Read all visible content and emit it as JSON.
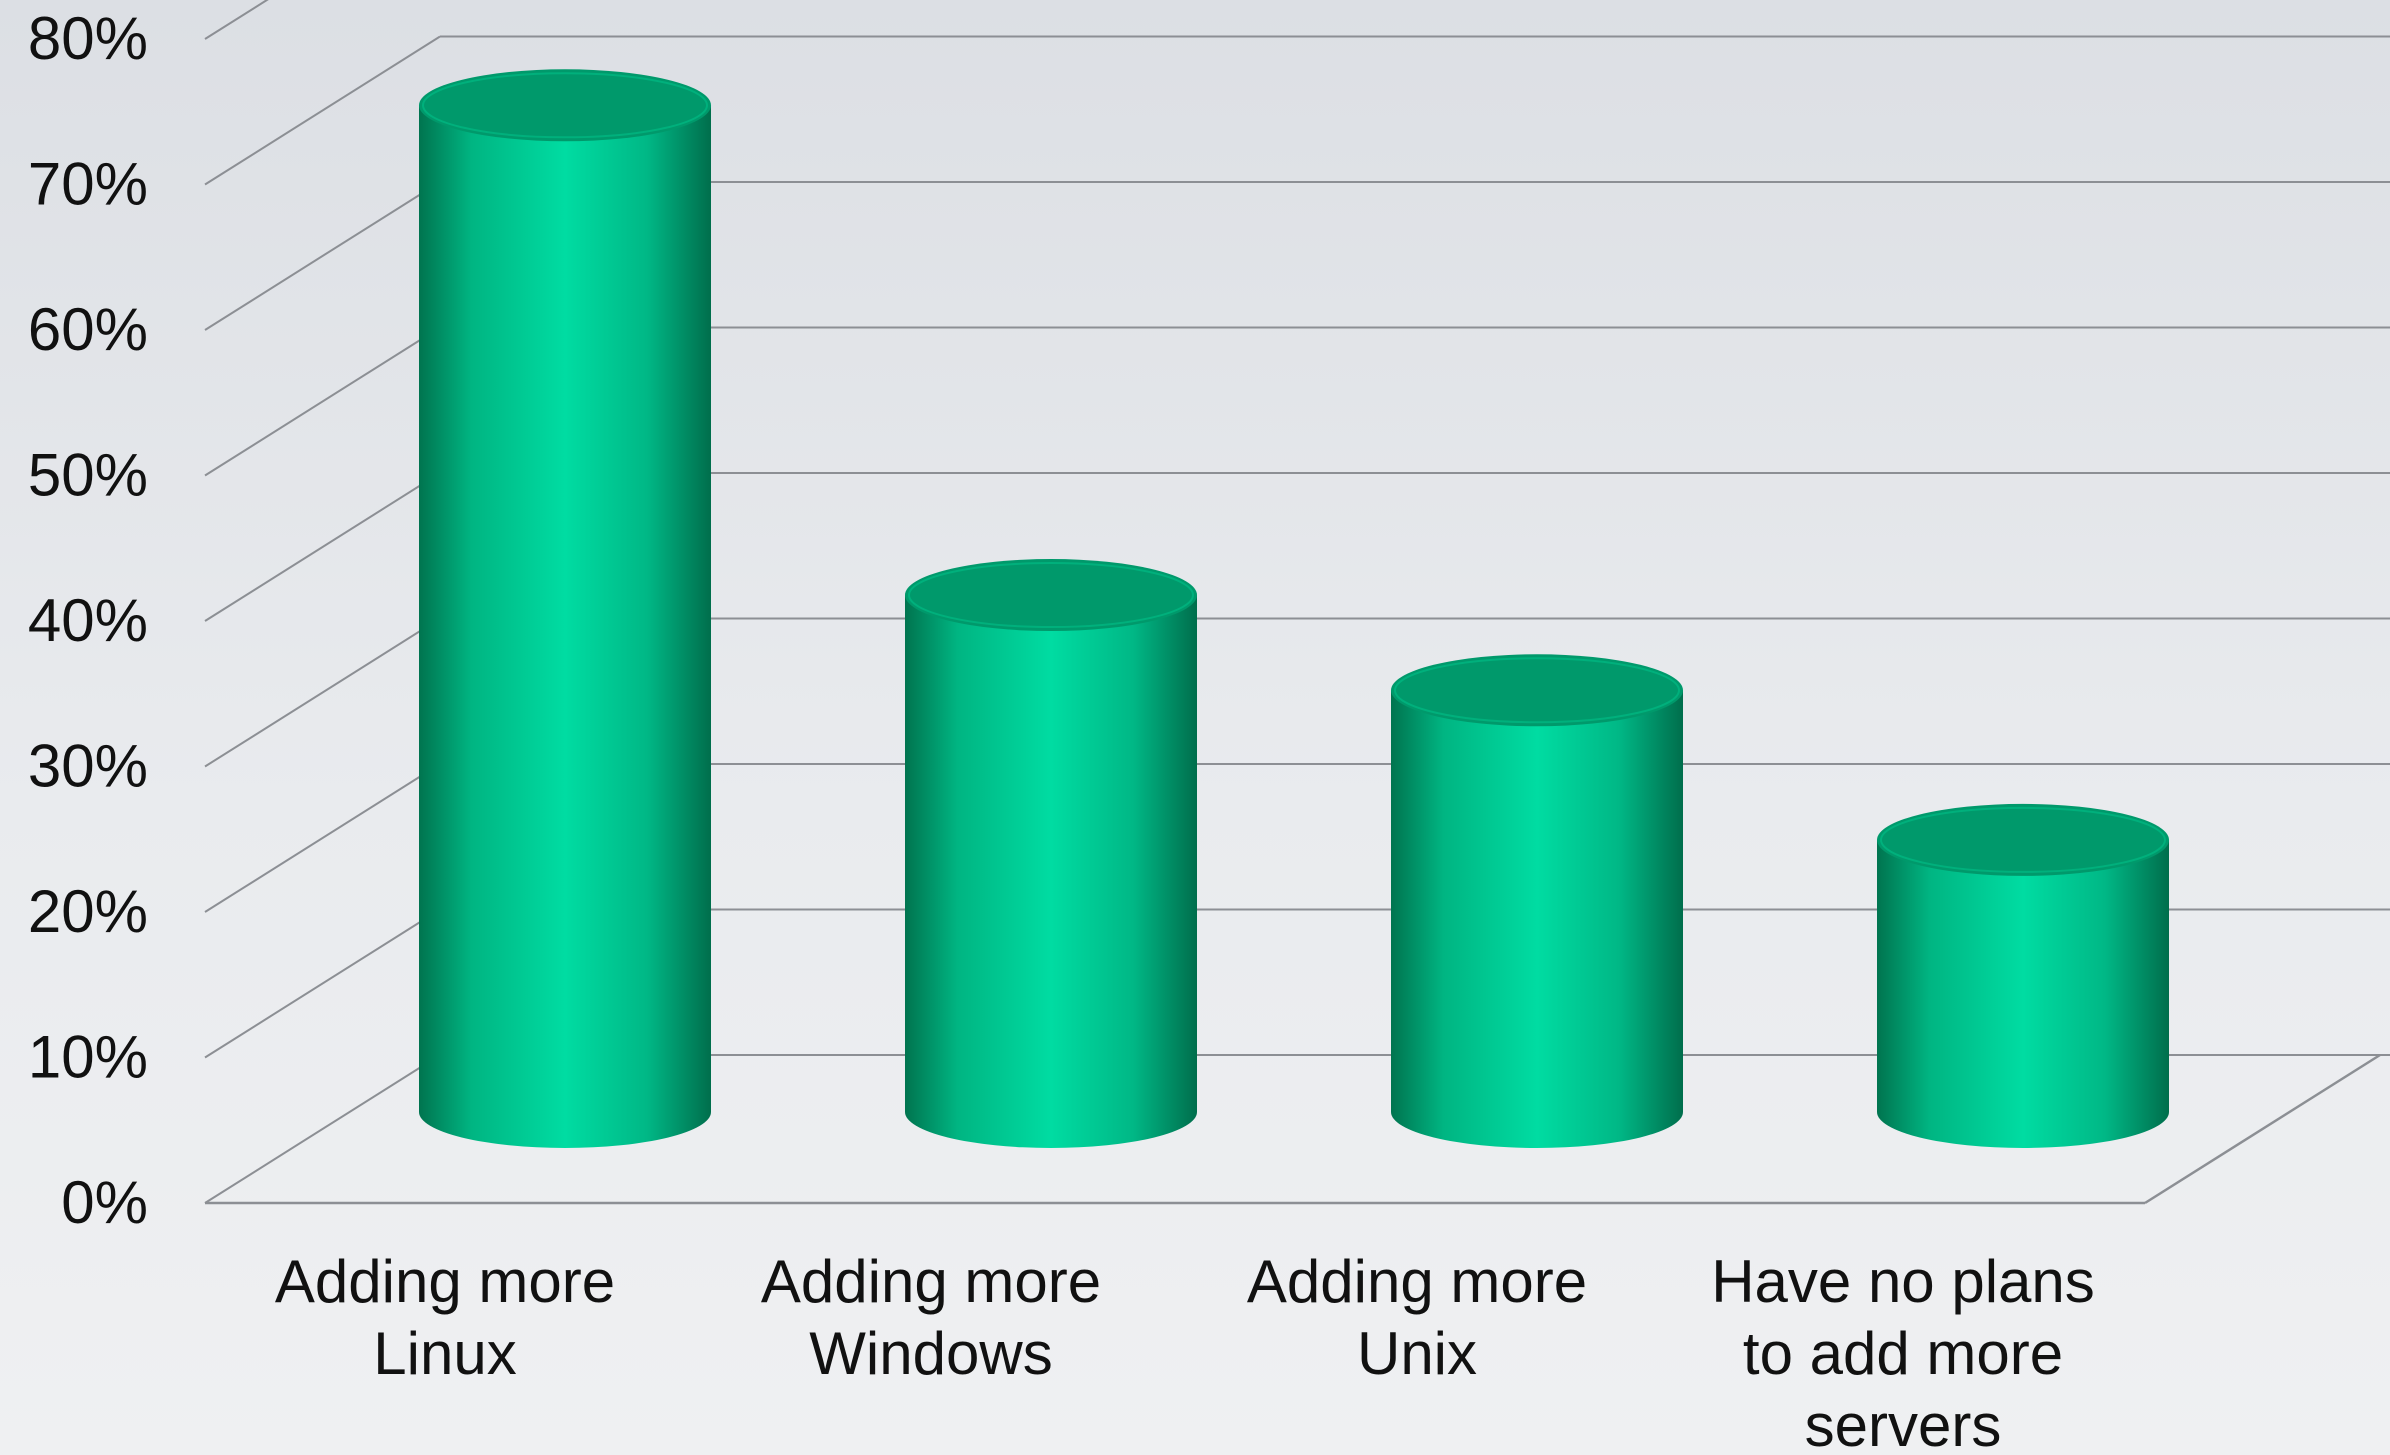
{
  "chart_data": {
    "type": "bar",
    "style": "3d-cylinder",
    "categories": [
      "Adding more Linux",
      "Adding more Windows",
      "Adding more Unix",
      "Have no plans to add more servers"
    ],
    "category_lines": [
      [
        "Adding more",
        "Linux"
      ],
      [
        "Adding more",
        "Windows"
      ],
      [
        "Adding more",
        "Unix"
      ],
      [
        "Have no plans",
        "to add more",
        "servers"
      ]
    ],
    "values": [
      74,
      38,
      31,
      20
    ],
    "value_unit": "%",
    "ylim": [
      0,
      80
    ],
    "yticks": [
      0,
      10,
      20,
      30,
      40,
      50,
      60,
      70,
      80
    ],
    "ytick_labels": [
      "0%",
      "10%",
      "20%",
      "30%",
      "40%",
      "50%",
      "60%",
      "70%",
      "80%"
    ],
    "grid": true,
    "legend": "none",
    "colors": {
      "bar_light": "#00d89e",
      "bar_dark": "#007a55",
      "bar_top": "#00996b",
      "grid": "#8c8f94"
    }
  }
}
